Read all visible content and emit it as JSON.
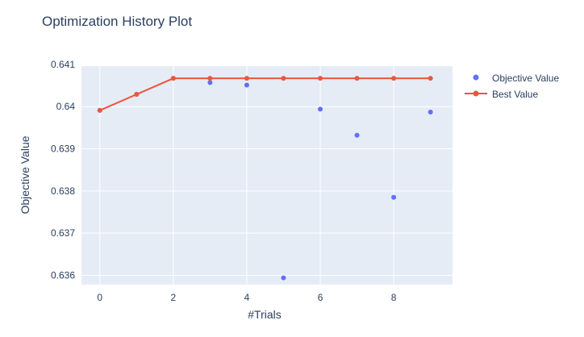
{
  "chart_data": {
    "type": "scatter",
    "title": "Optimization History Plot",
    "xlabel": "#Trials",
    "ylabel": "Objective Value",
    "xlim": [
      -0.5,
      9.6
    ],
    "ylim": [
      0.63578,
      0.64096
    ],
    "x_ticks": [
      0,
      2,
      4,
      6,
      8
    ],
    "x_tick_labels": [
      "0",
      "2",
      "4",
      "6",
      "8"
    ],
    "y_ticks": [
      0.636,
      0.637,
      0.638,
      0.639,
      0.64,
      0.641
    ],
    "y_tick_labels": [
      "0.636",
      "0.637",
      "0.638",
      "0.639",
      "0.64",
      "0.641"
    ],
    "grid": true,
    "legend_position": "top-right",
    "series": [
      {
        "name": "Objective Value",
        "mode": "markers",
        "color": "#636efa",
        "x": [
          0,
          1,
          2,
          3,
          4,
          5,
          6,
          7,
          8,
          9
        ],
        "y": [
          0.63991,
          0.64029,
          0.64067,
          0.64057,
          0.64051,
          0.63594,
          0.63994,
          0.63932,
          0.63785,
          0.63987
        ]
      },
      {
        "name": "Best Value",
        "mode": "lines+markers",
        "color": "#ef553b",
        "x": [
          0,
          1,
          2,
          3,
          4,
          5,
          6,
          7,
          8,
          9
        ],
        "y": [
          0.63991,
          0.64029,
          0.64067,
          0.64067,
          0.64067,
          0.64067,
          0.64067,
          0.64067,
          0.64067,
          0.64067
        ]
      }
    ]
  },
  "colors": {
    "plot_background": "#e5ecf6",
    "grid": "#ffffff",
    "text": "#2a3f5f"
  }
}
